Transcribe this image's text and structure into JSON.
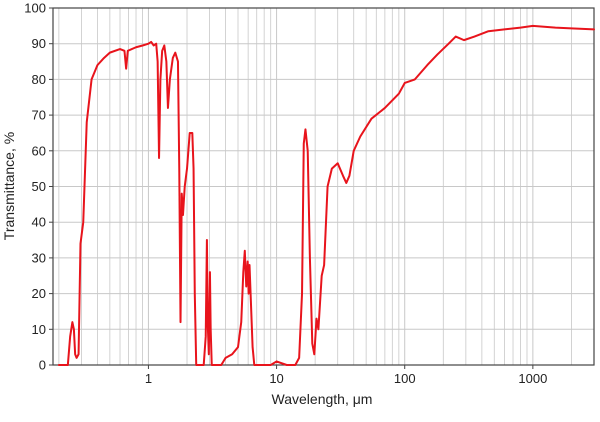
{
  "chart_data": {
    "type": "line",
    "xlabel": "Wavelength, μm",
    "ylabel": "Transmittance, %",
    "x_scale": "log",
    "xlim": [
      0.18,
      3000
    ],
    "ylim": [
      0,
      100
    ],
    "grid": true,
    "colors": {
      "series": "#e8141c",
      "grid": "#c8c8c8",
      "axis": "#444444"
    },
    "x_tick_labels": [
      {
        "value": 1,
        "label": "1"
      },
      {
        "value": 10,
        "label": "10"
      },
      {
        "value": 100,
        "label": "100"
      },
      {
        "value": 1000,
        "label": "1000"
      }
    ],
    "y_tick_labels": [
      {
        "value": 0,
        "label": "0"
      },
      {
        "value": 10,
        "label": "10"
      },
      {
        "value": 20,
        "label": "20"
      },
      {
        "value": 30,
        "label": "30"
      },
      {
        "value": 40,
        "label": "40"
      },
      {
        "value": 50,
        "label": "50"
      },
      {
        "value": 60,
        "label": "60"
      },
      {
        "value": 70,
        "label": "70"
      },
      {
        "value": 80,
        "label": "80"
      },
      {
        "value": 90,
        "label": "90"
      },
      {
        "value": 100,
        "label": "100"
      }
    ],
    "series": [
      {
        "points": [
          [
            0.2,
            0
          ],
          [
            0.235,
            0
          ],
          [
            0.245,
            8
          ],
          [
            0.255,
            12
          ],
          [
            0.262,
            10
          ],
          [
            0.268,
            3
          ],
          [
            0.275,
            2
          ],
          [
            0.285,
            3
          ],
          [
            0.295,
            34
          ],
          [
            0.31,
            40
          ],
          [
            0.33,
            68
          ],
          [
            0.36,
            80
          ],
          [
            0.4,
            84
          ],
          [
            0.45,
            86
          ],
          [
            0.5,
            87.5
          ],
          [
            0.6,
            88.5
          ],
          [
            0.65,
            88
          ],
          [
            0.67,
            83
          ],
          [
            0.69,
            88
          ],
          [
            0.8,
            89
          ],
          [
            0.9,
            89.5
          ],
          [
            1.0,
            90
          ],
          [
            1.05,
            90.5
          ],
          [
            1.1,
            89.5
          ],
          [
            1.15,
            90
          ],
          [
            1.18,
            85
          ],
          [
            1.21,
            58
          ],
          [
            1.24,
            80
          ],
          [
            1.28,
            88
          ],
          [
            1.33,
            89.5
          ],
          [
            1.38,
            85
          ],
          [
            1.42,
            72
          ],
          [
            1.47,
            80
          ],
          [
            1.55,
            86
          ],
          [
            1.62,
            87.5
          ],
          [
            1.7,
            85
          ],
          [
            1.74,
            55
          ],
          [
            1.78,
            12
          ],
          [
            1.82,
            48
          ],
          [
            1.86,
            42
          ],
          [
            1.92,
            50
          ],
          [
            2.0,
            55
          ],
          [
            2.1,
            65
          ],
          [
            2.2,
            65
          ],
          [
            2.25,
            55
          ],
          [
            2.3,
            20
          ],
          [
            2.36,
            0
          ],
          [
            2.5,
            0
          ],
          [
            2.7,
            0
          ],
          [
            2.8,
            8
          ],
          [
            2.86,
            35
          ],
          [
            2.9,
            12
          ],
          [
            2.96,
            3
          ],
          [
            3.02,
            26
          ],
          [
            3.06,
            10
          ],
          [
            3.12,
            0
          ],
          [
            3.4,
            0
          ],
          [
            3.7,
            0
          ],
          [
            4.0,
            2
          ],
          [
            4.5,
            3
          ],
          [
            5.0,
            5
          ],
          [
            5.3,
            12
          ],
          [
            5.5,
            26
          ],
          [
            5.65,
            32
          ],
          [
            5.8,
            22
          ],
          [
            5.95,
            29
          ],
          [
            6.05,
            20
          ],
          [
            6.15,
            28
          ],
          [
            6.3,
            18
          ],
          [
            6.5,
            5
          ],
          [
            6.7,
            0
          ],
          [
            9,
            0
          ],
          [
            10,
            1
          ],
          [
            12,
            0
          ],
          [
            14,
            0
          ],
          [
            15,
            2
          ],
          [
            15.8,
            20
          ],
          [
            16.3,
            62
          ],
          [
            16.8,
            66
          ],
          [
            17.5,
            60
          ],
          [
            18.2,
            30
          ],
          [
            19,
            6
          ],
          [
            19.7,
            3
          ],
          [
            20.5,
            13
          ],
          [
            21.2,
            10
          ],
          [
            22.5,
            25
          ],
          [
            23.5,
            28
          ],
          [
            25,
            50
          ],
          [
            27,
            55
          ],
          [
            30,
            56.5
          ],
          [
            33,
            53
          ],
          [
            35,
            51
          ],
          [
            37,
            53
          ],
          [
            40,
            60
          ],
          [
            45,
            64
          ],
          [
            55,
            69
          ],
          [
            70,
            72
          ],
          [
            90,
            76
          ],
          [
            100,
            79
          ],
          [
            120,
            80
          ],
          [
            150,
            84
          ],
          [
            180,
            87
          ],
          [
            220,
            90
          ],
          [
            250,
            92
          ],
          [
            290,
            91
          ],
          [
            350,
            92
          ],
          [
            450,
            93.5
          ],
          [
            600,
            94
          ],
          [
            800,
            94.5
          ],
          [
            1000,
            95
          ],
          [
            1500,
            94.5
          ],
          [
            2000,
            94.3
          ],
          [
            3000,
            94
          ]
        ]
      }
    ]
  }
}
